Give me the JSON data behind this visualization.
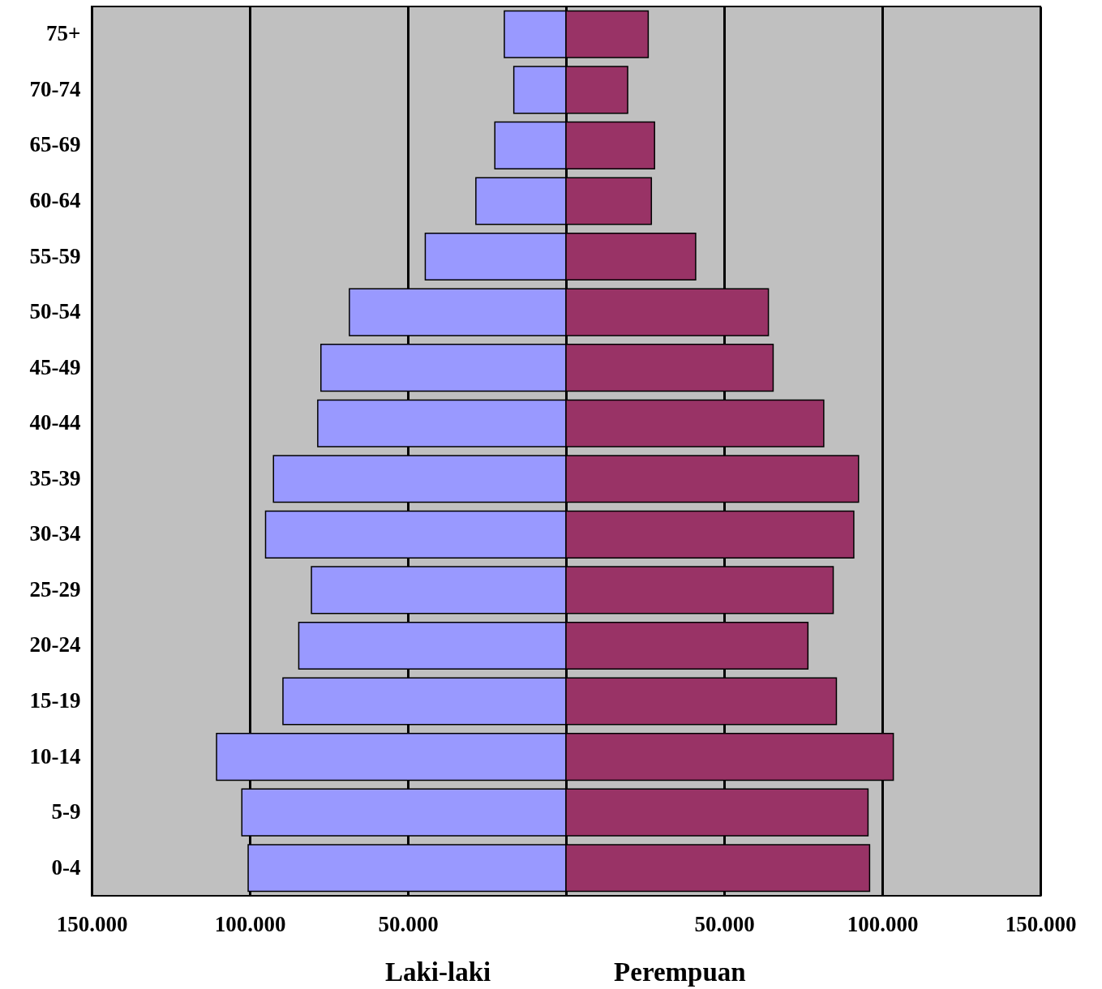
{
  "chart_data": {
    "type": "bar",
    "orientation": "horizontal",
    "categories": [
      "75+",
      "70-74",
      "65-69",
      "60-64",
      "55-59",
      "50-54",
      "45-49",
      "40-44",
      "35-39",
      "30-34",
      "25-29",
      "20-24",
      "15-19",
      "10-14",
      "5-9",
      "0-4"
    ],
    "series": [
      {
        "name": "Laki-laki",
        "color": "#9999ff",
        "values": [
          -19500,
          -16500,
          -22500,
          -28500,
          -44500,
          -68500,
          -77500,
          -78500,
          -92500,
          -95000,
          -80500,
          -84500,
          -89500,
          -110500,
          -102500,
          -100500
        ]
      },
      {
        "name": "Perempuan",
        "color": "#993366",
        "values": [
          26000,
          19500,
          28000,
          27000,
          41000,
          64000,
          65500,
          81500,
          92500,
          91000,
          84500,
          76500,
          85500,
          103500,
          95500,
          96000
        ]
      }
    ],
    "xlim": [
      -150000,
      150000
    ],
    "xticks": [
      {
        "value": -150000,
        "label": "150.000"
      },
      {
        "value": -100000,
        "label": "100.000"
      },
      {
        "value": -50000,
        "label": "50.000"
      },
      {
        "value": 0,
        "label": null
      },
      {
        "value": 50000,
        "label": "50.000"
      },
      {
        "value": 100000,
        "label": "100.000"
      },
      {
        "value": 150000,
        "label": "150.000"
      }
    ],
    "grid": "x",
    "stacked": true
  }
}
